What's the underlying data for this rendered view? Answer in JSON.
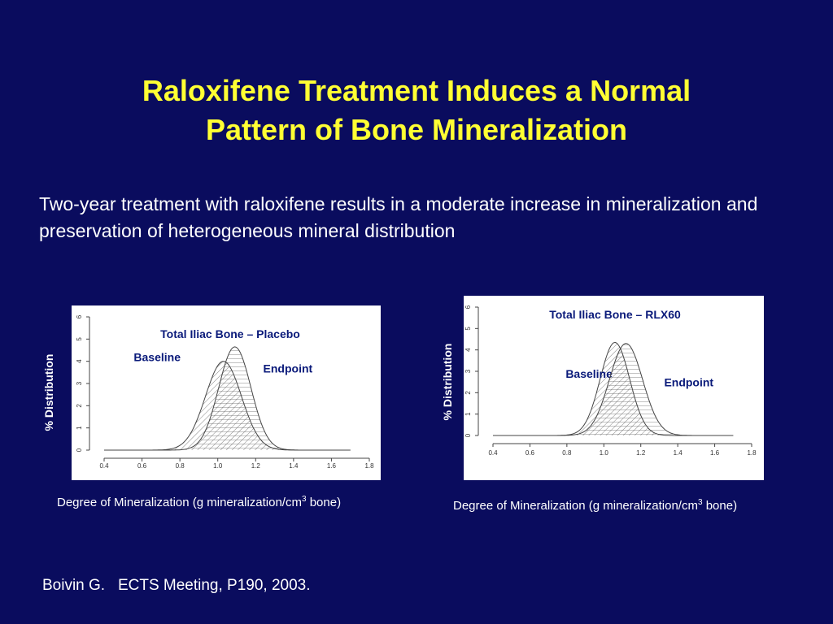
{
  "slide": {
    "title_line1": "Raloxifene Treatment Induces a Normal",
    "title_line2": "Pattern of Bone Mineralization",
    "subtitle": "Two-year treatment with raloxifene results in a moderate increase in mineralization and preservation of heterogeneous mineral distribution",
    "citation_author": "Boivin G.",
    "citation_source": "ECTS Meeting, P190, 2003.",
    "xlabel_prefix": "Degree of Mineralization (g mineralization/cm",
    "xlabel_sup": "3",
    "xlabel_suffix": " bone)"
  },
  "chart_data": [
    {
      "type": "area",
      "title": "Total Iliac Bone – Placebo",
      "ylabel": "% Distribution",
      "xlabel": "Degree of Mineralization (g mineralization/cm3 bone)",
      "xlim": [
        0.4,
        1.8
      ],
      "ylim": [
        0,
        6
      ],
      "xticks": [
        "0.4",
        "0.6",
        "0.8",
        "1.0",
        "1.2",
        "1.4",
        "1.6",
        "1.8"
      ],
      "yticks": [
        "0",
        "1",
        "2",
        "3",
        "4",
        "5",
        "6"
      ],
      "grid": false,
      "series": [
        {
          "name": "Baseline",
          "peak_x": 1.03,
          "peak_y": 4.0,
          "sd": 0.095,
          "range": [
            0.4,
            1.7
          ],
          "hatch": "diagonal",
          "label_x": 0.68,
          "label_y": 4.0
        },
        {
          "name": "Endpoint",
          "peak_x": 1.09,
          "peak_y": 4.65,
          "sd": 0.085,
          "range": [
            0.4,
            1.7
          ],
          "hatch": "horizontal",
          "label_x": 1.37,
          "label_y": 3.5
        }
      ]
    },
    {
      "type": "area",
      "title": "Total Iliac Bone – RLX60",
      "ylabel": "% Distribution",
      "xlabel": "Degree of Mineralization (g mineralization/cm3 bone)",
      "xlim": [
        0.4,
        1.8
      ],
      "ylim": [
        0,
        6
      ],
      "xticks": [
        "0.4",
        "0.6",
        "0.8",
        "1.0",
        "1.2",
        "1.4",
        "1.6",
        "1.8"
      ],
      "yticks": [
        "0",
        "1",
        "2",
        "3",
        "4",
        "5",
        "6"
      ],
      "grid": false,
      "series": [
        {
          "name": "Baseline",
          "peak_x": 1.06,
          "peak_y": 4.35,
          "sd": 0.08,
          "range": [
            0.4,
            1.7
          ],
          "hatch": "diagonal",
          "label_x": 0.92,
          "label_y": 2.7
        },
        {
          "name": "Endpoint",
          "peak_x": 1.12,
          "peak_y": 4.3,
          "sd": 0.09,
          "range": [
            0.4,
            1.7
          ],
          "hatch": "horizontal",
          "label_x": 1.46,
          "label_y": 2.3
        }
      ]
    }
  ]
}
